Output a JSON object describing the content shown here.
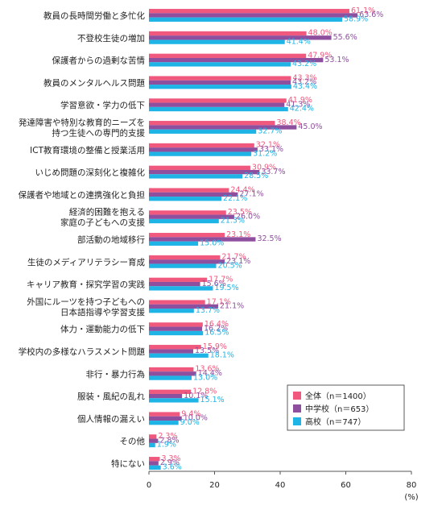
{
  "chart_data": {
    "type": "bar",
    "orientation": "horizontal",
    "categories": [
      "教員の長時間労働と多忙化",
      "不登校生徒の増加",
      "保護者からの過剰な苦情",
      "教員のメンタルヘルス問題",
      "学習意欲・学力の低下",
      "発達障害や特別な教育的ニーズを\n持つ生徒への専門的支援",
      "ICT教育環境の整備と授業活用",
      "いじめ問題の深刻化と複雑化",
      "保護者や地域との連携強化と負担",
      "経済的困難を抱える\n家庭の子どもへの支援",
      "部活動の地域移行",
      "生徒のメディアリテラシー育成",
      "キャリア教育・探究学習の実践",
      "外国にルーツを持つ子どもへの\n日本語指導や学習支援",
      "体力・運動能力の低下",
      "学校内の多様なハラスメント問題",
      "非行・暴力行為",
      "服装・風紀の乱れ",
      "個人情報の漏えい",
      "その他",
      "特にない"
    ],
    "series": [
      {
        "name": "全体（n＝1400）",
        "color": "#f0587e",
        "values": [
          61.1,
          48.0,
          47.9,
          43.3,
          41.9,
          38.4,
          32.1,
          30.9,
          24.4,
          23.5,
          23.1,
          21.7,
          17.7,
          17.1,
          16.4,
          15.9,
          13.6,
          12.8,
          9.4,
          2.3,
          3.3
        ],
        "labels": [
          "61.1%",
          "48.0%",
          "47.9%",
          "43.3%",
          "41.9%",
          "38.4%",
          "32.1%",
          "30.9%",
          "24.4%",
          "23.5%",
          "23.1%",
          "21.7%",
          "17.7%",
          "17.1%",
          "16.4%",
          "15.9%",
          "13.6%",
          "12.8%",
          "9.4%",
          "2.3%",
          "3.3%"
        ]
      },
      {
        "name": "中学校（n＝653）",
        "color": "#8e4f9e",
        "values": [
          63.6,
          55.6,
          53.1,
          43.2,
          41.3,
          45.0,
          33.1,
          33.7,
          27.1,
          26.0,
          32.5,
          23.1,
          15.6,
          21.1,
          16.2,
          13.5,
          14.4,
          10.1,
          10.0,
          2.8,
          2.9
        ],
        "labels": [
          "63.6%",
          "55.6%",
          "53.1%",
          "43.2%",
          "41.3%",
          "45.0%",
          "33.1%",
          "33.7%",
          "27.1%",
          "26.0%",
          "32.5%",
          "23.1%",
          "15.6%",
          "21.1%",
          "16.2%",
          "13.5%",
          "14.4%",
          "10.1%",
          "10.0%",
          "2.8%",
          "2.9%"
        ]
      },
      {
        "name": "高校（n＝747）",
        "color": "#1fb4e6",
        "values": [
          58.9,
          41.4,
          43.2,
          43.4,
          42.4,
          32.7,
          31.2,
          28.5,
          22.1,
          21.3,
          15.0,
          20.5,
          19.5,
          13.7,
          16.5,
          18.1,
          13.0,
          15.1,
          9.0,
          1.9,
          3.6
        ],
        "labels": [
          "58.9%",
          "41.4%",
          "43.2%",
          "43.4%",
          "42.4%",
          "32.7%",
          "31.2%",
          "28.5%",
          "22.1%",
          "21.3%",
          "15.0%",
          "20.5%",
          "19.5%",
          "13.7%",
          "16.5%",
          "18.1%",
          "13.0%",
          "15.1%",
          "9.0%",
          "1.9%",
          "3.6%"
        ]
      }
    ],
    "xlim": [
      0,
      80
    ],
    "xticks": [
      "0",
      "20",
      "40",
      "60",
      "80"
    ],
    "xlabel": "(%)",
    "grid": false,
    "legend_position": "bottom-right"
  }
}
